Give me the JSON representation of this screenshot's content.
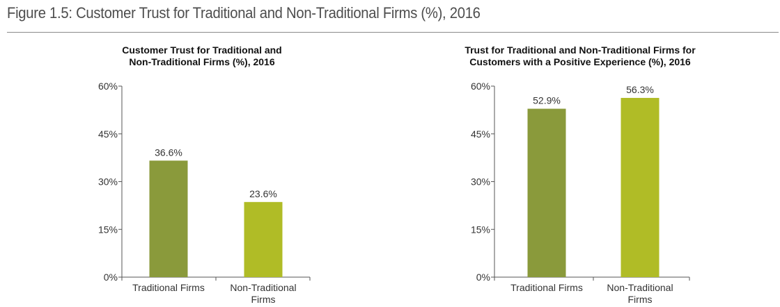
{
  "figure": {
    "title": "Figure 1.5: Customer Trust for Traditional and Non-Traditional Firms (%), 2016"
  },
  "chart_data": [
    {
      "type": "bar",
      "title_lines": [
        "Customer Trust for Traditional and",
        "Non-Traditional Firms (%), 2016"
      ],
      "categories": [
        [
          "Traditional Firms"
        ],
        [
          "Non-Traditional",
          "Firms"
        ]
      ],
      "values": [
        36.6,
        23.6
      ],
      "value_labels": [
        "36.6%",
        "23.6%"
      ],
      "colors": [
        "#8a9a3b",
        "#b0bc26"
      ],
      "ylim": [
        0,
        60
      ],
      "yticks": [
        0,
        15,
        30,
        45,
        60
      ],
      "ytick_labels": [
        "0%",
        "15%",
        "30%",
        "45%",
        "60%"
      ],
      "grid": false,
      "legend": "none"
    },
    {
      "type": "bar",
      "title_lines": [
        "Trust for Traditional and Non-Traditional Firms for",
        "Customers with a Positive Experience (%), 2016"
      ],
      "categories": [
        [
          "Traditional Firms"
        ],
        [
          "Non-Traditional",
          "Firms"
        ]
      ],
      "values": [
        52.9,
        56.3
      ],
      "value_labels": [
        "52.9%",
        "56.3%"
      ],
      "colors": [
        "#8a9a3b",
        "#b0bc26"
      ],
      "ylim": [
        0,
        60
      ],
      "yticks": [
        0,
        15,
        30,
        45,
        60
      ],
      "ytick_labels": [
        "0%",
        "15%",
        "30%",
        "45%",
        "60%"
      ],
      "grid": false,
      "legend": "none"
    }
  ]
}
